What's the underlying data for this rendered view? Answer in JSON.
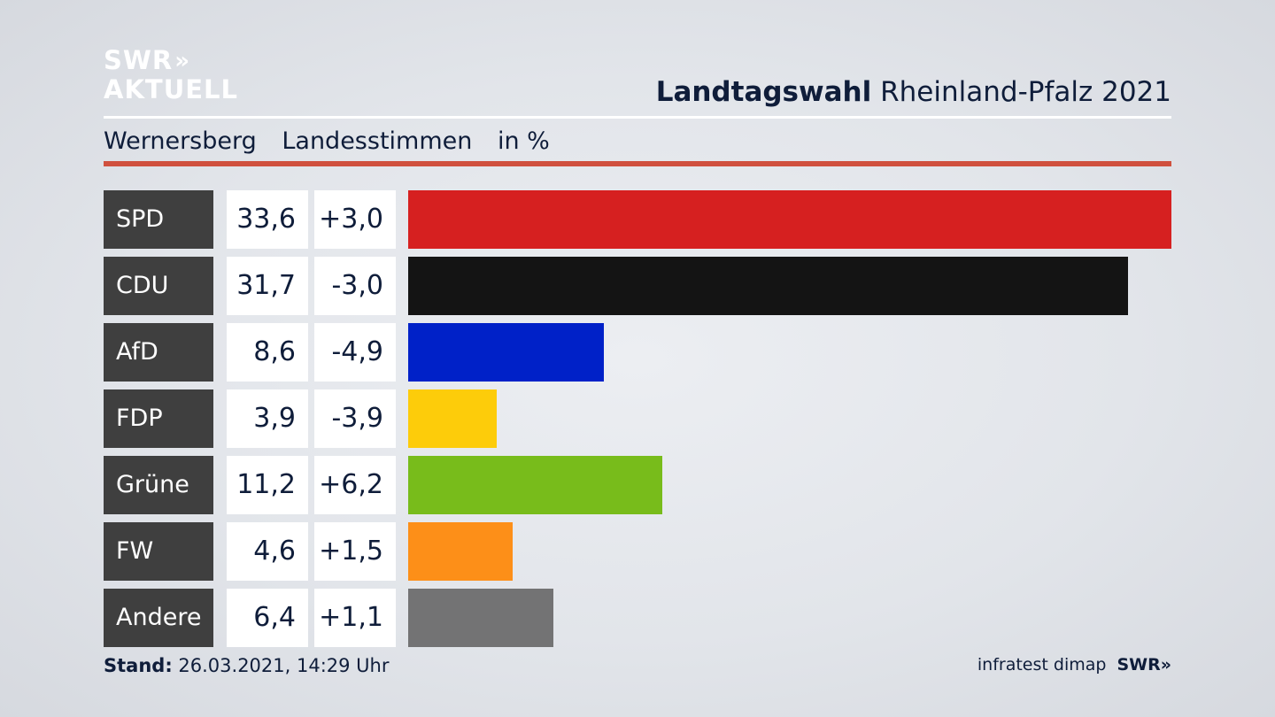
{
  "brand": {
    "line1": "SWR",
    "line2": "AKTUELL",
    "chevrons": "»"
  },
  "header": {
    "title_bold": "Landtagswahl",
    "title_rest": " Rheinland-Pfalz 2021"
  },
  "subtitle": {
    "place": "Wernersberg",
    "vote_type": "Landesstimmen",
    "unit": "in %"
  },
  "chart_data": {
    "type": "bar",
    "orientation": "horizontal",
    "categories": [
      "SPD",
      "CDU",
      "AfD",
      "FDP",
      "Grüne",
      "FW",
      "Andere"
    ],
    "series": [
      {
        "values": [
          33.6,
          31.7,
          8.6,
          3.9,
          11.2,
          4.6,
          6.4
        ]
      }
    ],
    "value_labels": [
      "33,6",
      "31,7",
      "8,6",
      "3,9",
      "11,2",
      "4,6",
      "6,4"
    ],
    "change_labels": [
      "+3,0",
      "-3,0",
      "-4,9",
      "-3,9",
      "+6,2",
      "+1,5",
      "+1,1"
    ],
    "changes": [
      3.0,
      -3.0,
      -4.9,
      -3.9,
      6.2,
      1.5,
      1.1
    ],
    "colors": [
      "#d62020",
      "#141414",
      "#0021c8",
      "#fdcc0a",
      "#78bc1b",
      "#fd8f18",
      "#737374"
    ],
    "xlim": [
      0,
      33.6
    ]
  },
  "footer": {
    "stand_label": "Stand:",
    "stand_value": " 26.03.2021, 14:29 Uhr"
  },
  "source": {
    "pollster": "infratest dimap",
    "network": "SWR",
    "chevrons": "»"
  }
}
